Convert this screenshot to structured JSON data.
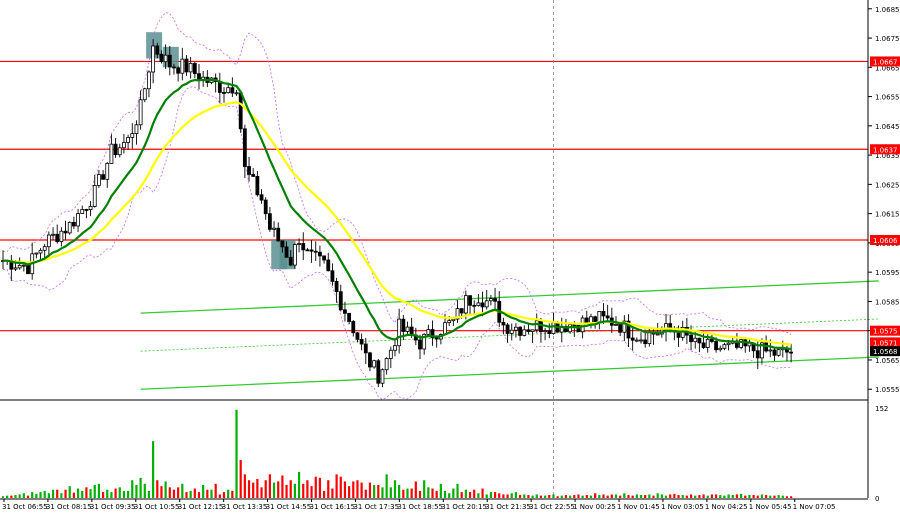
{
  "chart_data": {
    "type": "candlestick",
    "title": "",
    "colors": {
      "background": "#ffffff",
      "axis": "#000000",
      "bull_candle": "#000000",
      "bear_candle": "#000000",
      "level_line": "#ff0000",
      "level_label_bg": "#ff0000",
      "last_price_label_bg": "#000000",
      "ema_fast": "#008000",
      "ema_slow": "#ffff00",
      "bollinger": "#cc66ff",
      "channel": "#33cc33",
      "entry_marker": "#5b8f8f",
      "volume_up": "#00b000",
      "volume_down": "#ff0000",
      "crosshair": "#888888"
    },
    "price_axis": {
      "ylim": [
        1.0552,
        1.0688
      ],
      "ticks": [
        "1.0685",
        "1.0675",
        "1.0665",
        "1.0655",
        "1.0645",
        "1.0635",
        "1.0625",
        "1.0615",
        "1.0605",
        "1.0595",
        "1.0585",
        "1.0575",
        "1.0565",
        "1.0555"
      ]
    },
    "volume_axis": {
      "ylim": [
        0,
        152
      ],
      "ticks": [
        "152",
        "0"
      ]
    },
    "time_labels": [
      "31 Oct 06:55",
      "31 Oct 08:15",
      "31 Oct 09:35",
      "31 Oct 10:55",
      "31 Oct 12:15",
      "31 Oct 13:35",
      "31 Oct 14:55",
      "31 Oct 16:15",
      "31 Oct 17:35",
      "31 Oct 18:55",
      "31 Oct 20:15",
      "31 Oct 21:35",
      "31 Oct 22:55",
      "1 Nov 00:25",
      "1 Nov 01:45",
      "1 Nov 03:05",
      "1 Nov 04:25",
      "1 Nov 05:45",
      "1 Nov 07:05"
    ],
    "horizontal_levels": [
      {
        "value": 1.0667,
        "label": "1.0667"
      },
      {
        "value": 1.0637,
        "label": "1.0637"
      },
      {
        "value": 1.0606,
        "label": "1.0606"
      },
      {
        "value": 1.0575,
        "label": "1.0575"
      }
    ],
    "price_labels": [
      {
        "value": 1.0571,
        "label": "1.0571",
        "style": "level"
      },
      {
        "value": 1.0568,
        "label": "1.0568",
        "style": "last"
      }
    ],
    "close_anchors": [
      [
        0,
        1.0599
      ],
      [
        6,
        1.0597
      ],
      [
        10,
        1.0605
      ],
      [
        16,
        1.0611
      ],
      [
        22,
        1.0622
      ],
      [
        26,
        1.0636
      ],
      [
        30,
        1.064
      ],
      [
        33,
        1.0651
      ],
      [
        36,
        1.0672
      ],
      [
        40,
        1.0666
      ],
      [
        44,
        1.0665
      ],
      [
        48,
        1.0661
      ],
      [
        53,
        1.0658
      ],
      [
        56,
        1.0659
      ],
      [
        58,
        1.063
      ],
      [
        62,
        1.062
      ],
      [
        64,
        1.061
      ],
      [
        67,
        1.0604
      ],
      [
        69,
        1.0599
      ],
      [
        71,
        1.0607
      ],
      [
        73,
        1.0601
      ],
      [
        77,
        1.0597
      ],
      [
        80,
        1.0588
      ],
      [
        84,
        1.0576
      ],
      [
        87,
        1.0566
      ],
      [
        90,
        1.056
      ],
      [
        92,
        1.0565
      ],
      [
        95,
        1.0576
      ],
      [
        100,
        1.0571
      ],
      [
        104,
        1.0575
      ],
      [
        108,
        1.0578
      ],
      [
        111,
        1.0585
      ],
      [
        114,
        1.0587
      ],
      [
        118,
        1.0583
      ],
      [
        120,
        1.0577
      ],
      [
        124,
        1.0576
      ],
      [
        130,
        1.0577
      ],
      [
        135,
        1.0577
      ],
      [
        140,
        1.0578
      ],
      [
        143,
        1.0579
      ],
      [
        147,
        1.0578
      ],
      [
        150,
        1.0575
      ],
      [
        153,
        1.0573
      ],
      [
        158,
        1.0575
      ],
      [
        162,
        1.0575
      ],
      [
        166,
        1.057
      ],
      [
        170,
        1.0569
      ],
      [
        174,
        1.0569
      ],
      [
        178,
        1.0569
      ],
      [
        182,
        1.0568
      ],
      [
        186,
        1.0567
      ],
      [
        189,
        1.0568
      ]
    ],
    "volume_values": [
      3,
      4,
      4,
      5,
      6,
      8,
      4,
      10,
      7,
      10,
      12,
      8,
      14,
      14,
      8,
      14,
      20,
      9,
      16,
      12,
      18,
      15,
      22,
      24,
      10,
      14,
      10,
      16,
      18,
      12,
      12,
      30,
      22,
      34,
      24,
      12,
      96,
      30,
      20,
      28,
      18,
      14,
      18,
      24,
      10,
      12,
      16,
      10,
      22,
      14,
      14,
      24,
      6,
      10,
      14,
      12,
      149,
      64,
      40,
      30,
      26,
      32,
      18,
      30,
      40,
      26,
      28,
      38,
      22,
      30,
      24,
      44,
      24,
      30,
      20,
      36,
      34,
      12,
      30,
      16,
      40,
      36,
      28,
      20,
      28,
      30,
      26,
      14,
      26,
      22,
      22,
      18,
      40,
      18,
      30,
      22,
      14,
      16,
      16,
      28,
      12,
      30,
      18,
      16,
      12,
      24,
      12,
      8,
      16,
      24,
      10,
      14,
      10,
      14,
      8,
      16,
      6,
      10,
      10,
      8,
      6,
      6,
      8,
      10,
      5,
      6,
      5,
      4,
      6,
      4,
      4,
      5,
      6,
      3,
      4,
      5,
      4,
      5,
      6,
      4,
      5,
      4,
      8,
      5,
      6,
      4,
      6,
      6,
      4,
      8,
      5,
      4,
      6,
      5,
      5,
      6,
      4,
      8,
      6,
      4,
      6,
      7,
      5,
      5,
      4,
      6,
      4,
      5,
      6,
      4,
      6,
      6,
      5,
      4,
      6,
      5,
      6,
      7,
      4,
      5,
      5,
      4,
      6,
      5,
      4,
      4,
      5,
      4,
      3,
      3
    ],
    "channel_lines": [
      {
        "start": [
          33,
          1.0555
        ],
        "end": [
          210,
          1.0566
        ]
      },
      {
        "start": [
          33,
          1.0581
        ],
        "end": [
          210,
          1.0592
        ]
      }
    ],
    "channel_midline": {
      "start": [
        33,
        1.0568
      ],
      "end": [
        210,
        1.0579
      ]
    },
    "entry_markers": [
      {
        "bar": 36,
        "from": 1.0668,
        "to": 1.0677
      },
      {
        "bar": 40,
        "from": 1.0665,
        "to": 1.0672
      },
      {
        "bar": 66,
        "from": 1.0596,
        "to": 1.0606
      },
      {
        "bar": 68,
        "from": 1.0596,
        "to": 1.0606
      }
    ],
    "crosshair_bar": 132
  }
}
